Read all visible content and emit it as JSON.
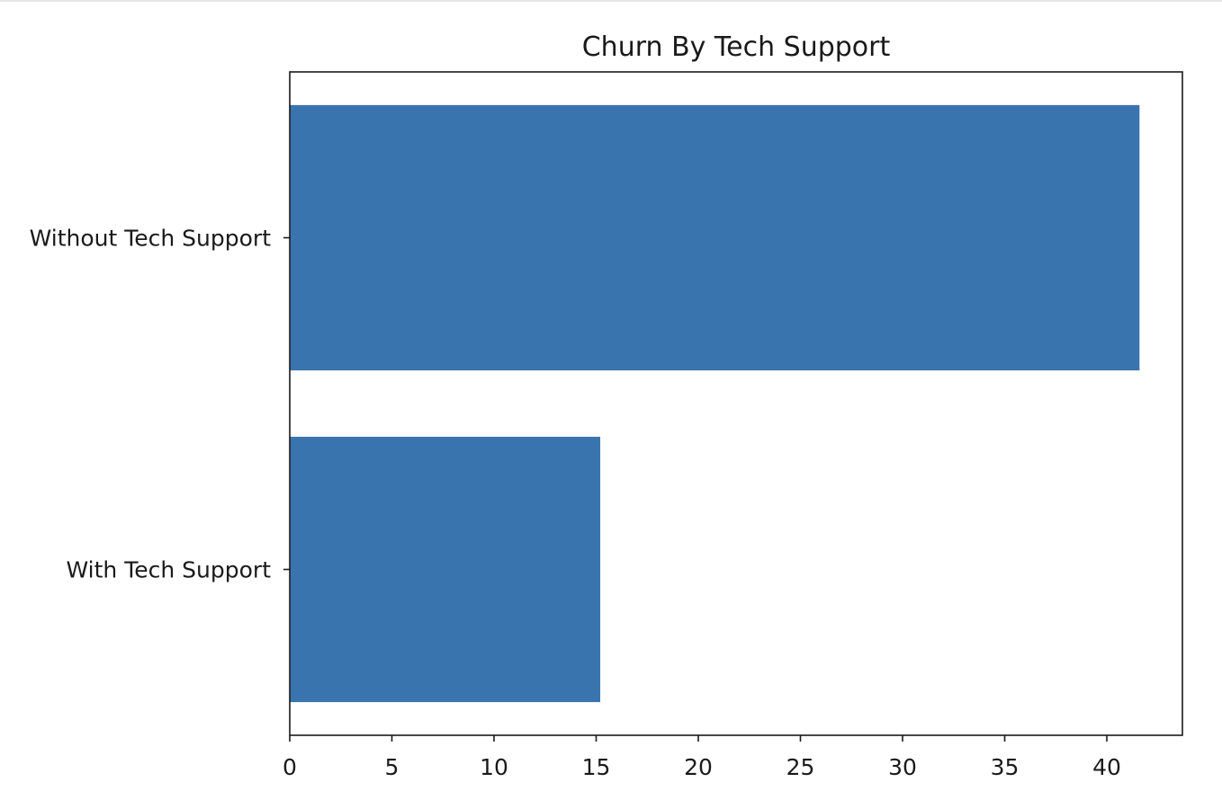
{
  "chart_data": {
    "type": "bar",
    "orientation": "horizontal",
    "title": "Churn By Tech Support",
    "xlabel": "",
    "ylabel": "",
    "categories": [
      "Without Tech Support",
      "With Tech Support"
    ],
    "values": [
      41.6,
      15.2
    ],
    "xlim": [
      0,
      43.7
    ],
    "xticks": [
      0,
      5,
      10,
      15,
      20,
      25,
      30,
      35,
      40
    ],
    "bar_color": "#3a74ae",
    "grid": false,
    "legend": "none"
  }
}
